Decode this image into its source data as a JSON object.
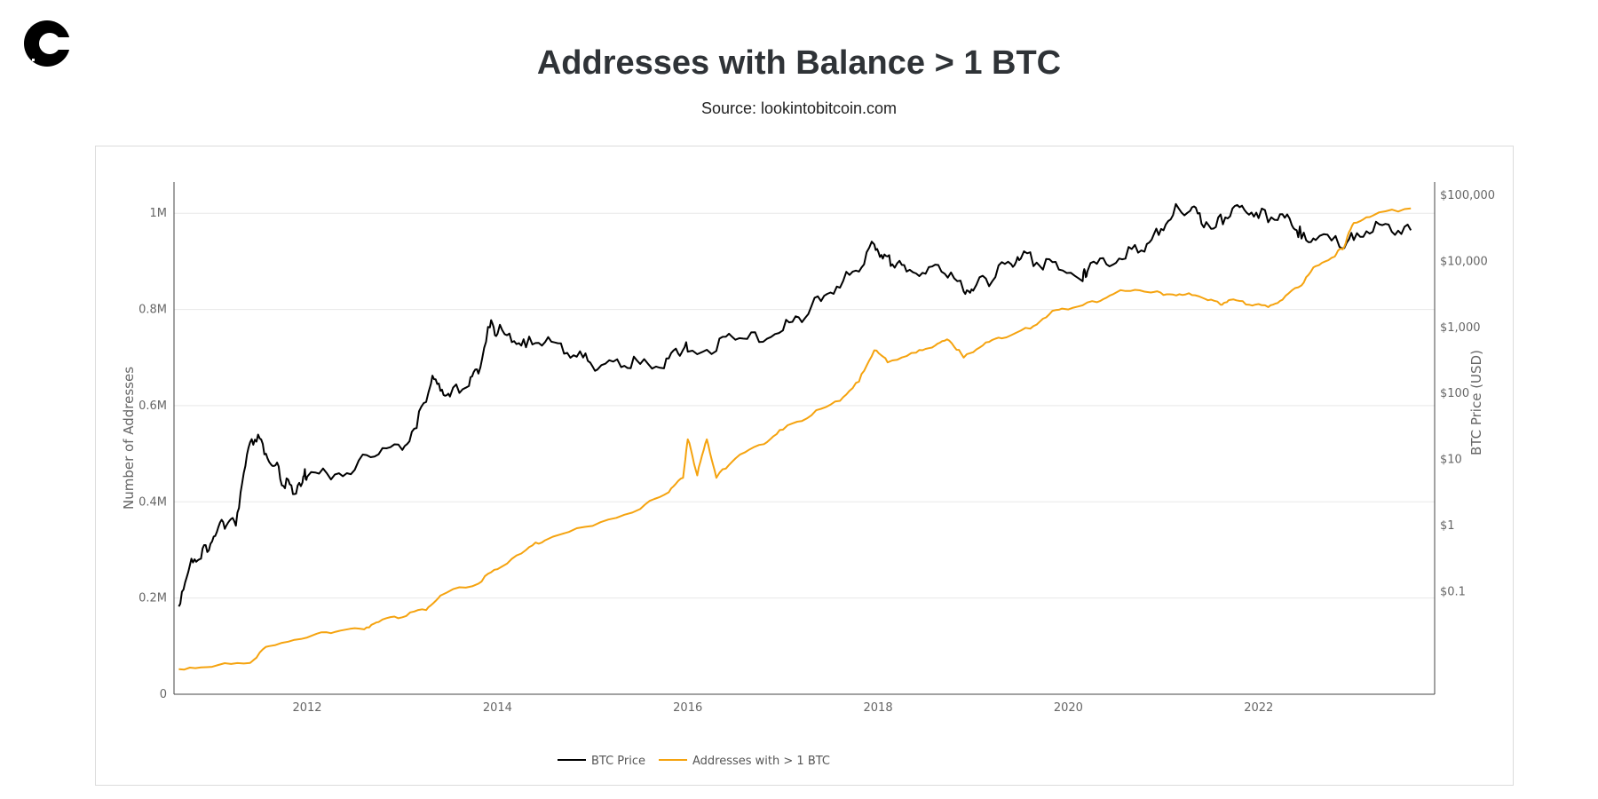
{
  "page": {
    "title": "Addresses with Balance > 1 BTC",
    "subtitle": "Source: lookintobitcoin.com",
    "logo_icon": "coin-c-logo-icon"
  },
  "chart_data": {
    "type": "line",
    "title": "Addresses with Balance > 1 BTC",
    "xlabel": "",
    "ylabel": "Number of Addresses",
    "y2label": "BTC Price (USD)",
    "xlim": [
      2010.6,
      2023.85
    ],
    "ylim": [
      0,
      1065000
    ],
    "y2_log_range": [
      -2.55,
      5.2
    ],
    "x_ticks": [
      2012,
      2014,
      2016,
      2018,
      2020,
      2022
    ],
    "x_tick_labels": [
      "2012",
      "2014",
      "2016",
      "2018",
      "2020",
      "2022"
    ],
    "y_ticks": [
      0,
      200000,
      400000,
      600000,
      800000,
      1000000
    ],
    "y_tick_labels": [
      "0",
      "0.2M",
      "0.4M",
      "0.6M",
      "0.8M",
      "1M"
    ],
    "y2_ticks_log": [
      -1,
      0,
      1,
      2,
      3,
      4,
      5
    ],
    "y2_tick_labels": [
      "$0.1",
      "$1",
      "$10",
      "$100",
      "$1,000",
      "$10,000",
      "$100,000"
    ],
    "grid": true,
    "legend_position": "bottom-center",
    "series": [
      {
        "name": "BTC Price",
        "axis": "right-log",
        "color": "#000000",
        "x": [
          2010.65,
          2010.75,
          2010.85,
          2010.95,
          2011.05,
          2011.15,
          2011.25,
          2011.35,
          2011.45,
          2011.55,
          2011.65,
          2011.75,
          2011.85,
          2011.95,
          2012.0,
          2012.25,
          2012.5,
          2012.75,
          2013.0,
          2013.15,
          2013.3,
          2013.4,
          2013.5,
          2013.7,
          2013.8,
          2013.92,
          2014.0,
          2014.15,
          2014.3,
          2014.5,
          2014.7,
          2014.9,
          2015.05,
          2015.3,
          2015.5,
          2015.75,
          2015.9,
          2016.0,
          2016.3,
          2016.5,
          2016.75,
          2017.0,
          2017.2,
          2017.4,
          2017.6,
          2017.8,
          2017.96,
          2018.05,
          2018.15,
          2018.3,
          2018.5,
          2018.7,
          2018.9,
          2019.0,
          2019.2,
          2019.4,
          2019.5,
          2019.7,
          2019.9,
          2020.15,
          2020.2,
          2020.4,
          2020.6,
          2020.8,
          2020.95,
          2021.1,
          2021.28,
          2021.4,
          2021.55,
          2021.7,
          2021.85,
          2022.0,
          2022.2,
          2022.35,
          2022.45,
          2022.6,
          2022.85,
          2023.0,
          2023.2,
          2023.4,
          2023.6
        ],
        "y": [
          0.06,
          0.2,
          0.3,
          0.4,
          0.8,
          1.0,
          1.0,
          8.0,
          20.0,
          12.0,
          8.0,
          4.0,
          3.0,
          4.5,
          5.5,
          5.0,
          7.0,
          12.0,
          14.0,
          30.0,
          140.0,
          110.0,
          90.0,
          130.0,
          200.0,
          1000.0,
          800.0,
          600.0,
          500.0,
          600.0,
          400.0,
          350.0,
          230.0,
          250.0,
          280.0,
          240.0,
          400.0,
          430.0,
          440.0,
          650.0,
          600.0,
          900.0,
          1200.0,
          2500.0,
          4000.0,
          7000.0,
          18000.0,
          11000.0,
          9000.0,
          7000.0,
          6500.0,
          6500.0,
          3500.0,
          3600.0,
          5000.0,
          9000.0,
          11000.0,
          8500.0,
          7500.0,
          5000.0,
          7000.0,
          9000.0,
          11000.0,
          14000.0,
          25000.0,
          50000.0,
          58000.0,
          37000.0,
          33000.0,
          48000.0,
          60000.0,
          45000.0,
          42000.0,
          35000.0,
          22000.0,
          21000.0,
          16500.0,
          21000.0,
          28000.0,
          28000.0,
          29500.0
        ]
      },
      {
        "name": "Addresses with > 1 BTC",
        "axis": "left",
        "color": "#f5a30f",
        "x": [
          2010.65,
          2011.0,
          2011.4,
          2011.6,
          2012.0,
          2012.3,
          2012.6,
          2012.75,
          2013.0,
          2013.25,
          2013.4,
          2013.8,
          2014.0,
          2014.3,
          2014.5,
          2015.0,
          2015.5,
          2015.8,
          2015.95,
          2016.0,
          2016.1,
          2016.2,
          2016.3,
          2016.5,
          2016.8,
          2017.0,
          2017.3,
          2017.6,
          2017.8,
          2017.96,
          2018.1,
          2018.4,
          2018.6,
          2018.75,
          2018.9,
          2019.1,
          2019.3,
          2019.6,
          2019.8,
          2020.0,
          2020.3,
          2020.5,
          2020.8,
          2021.0,
          2021.2,
          2021.4,
          2021.6,
          2021.7,
          2021.9,
          2022.1,
          2022.25,
          2022.45,
          2022.6,
          2022.8,
          2022.9,
          2023.0,
          2023.2,
          2023.6
        ],
        "y": [
          52000,
          57000,
          65000,
          100000,
          118000,
          130000,
          135000,
          150000,
          160000,
          175000,
          205000,
          230000,
          260000,
          300000,
          320000,
          350000,
          385000,
          420000,
          450000,
          530000,
          455000,
          530000,
          450000,
          490000,
          520000,
          550000,
          580000,
          610000,
          650000,
          715000,
          690000,
          710000,
          725000,
          735000,
          700000,
          725000,
          740000,
          760000,
          790000,
          800000,
          815000,
          835000,
          837000,
          830000,
          830000,
          825000,
          810000,
          820000,
          810000,
          805000,
          820000,
          850000,
          890000,
          910000,
          930000,
          980000,
          995000,
          1010000
        ]
      }
    ]
  }
}
